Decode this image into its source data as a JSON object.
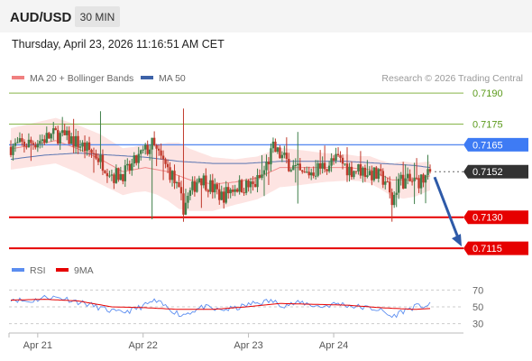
{
  "header": {
    "symbol": "AUD/USD",
    "interval": "30 MIN",
    "datetime": "Thursday, April 23, 2026 11:16:51 AM CET"
  },
  "legend": {
    "ma20_label": "MA 20 + Bollinger Bands",
    "ma50_label": "MA 50",
    "copyright": "Research © 2026 Trading Central",
    "rsi_label": "RSI",
    "rsi_ma_label": "9MA"
  },
  "colors": {
    "background": "#ffffff",
    "header_bg": "#f4f4f4",
    "ma20": "#f08080",
    "bollinger_fill": "#fde4e2",
    "ma50": "#3d62a8",
    "resistance_green": "#86b548",
    "resistance_green_text": "#5b9a1b",
    "current_level_line": "#5b8df0",
    "current_level_box": "#3e7bf4",
    "support_red": "#e60000",
    "last_price_box": "#333333",
    "candle_up": "#3f7f4a",
    "candle_down": "#c0392b",
    "forecast_arrow": "#2e5aa8",
    "rsi_line": "#5b8df0",
    "rsi_ma_line": "#e60000"
  },
  "chart_data": [
    {
      "type": "candlestick",
      "title": "AUD/USD",
      "interval": "30 MIN",
      "x_tick_labels": [
        "Apr 21",
        "Apr 22",
        "Apr 23",
        "Apr 24"
      ],
      "ylim": [
        0.71085,
        0.71957
      ],
      "last_price": 0.7152,
      "levels": [
        {
          "label": "0.7190",
          "value": 0.719,
          "kind": "resistance"
        },
        {
          "label": "0.7175",
          "value": 0.7175,
          "kind": "resistance"
        },
        {
          "label": "0.7165",
          "value": 0.7165,
          "kind": "pivot"
        },
        {
          "label": "0.7152",
          "value": 0.7152,
          "kind": "last"
        },
        {
          "label": "0.7130",
          "value": 0.713,
          "kind": "support"
        },
        {
          "label": "0.7115",
          "value": 0.7115,
          "kind": "support"
        }
      ],
      "forecast": {
        "from": 0.7152,
        "to": 0.7115,
        "direction": "down"
      },
      "overlays": [
        "MA 20 + Bollinger Bands",
        "MA 50"
      ],
      "close_path": [
        [
          0,
          0.7164
        ],
        [
          10,
          0.7166
        ],
        [
          20,
          0.717
        ],
        [
          28,
          0.7167
        ],
        [
          38,
          0.716
        ],
        [
          46,
          0.715
        ],
        [
          52,
          0.7152
        ],
        [
          58,
          0.716
        ],
        [
          63,
          0.7165
        ],
        [
          67,
          0.7158
        ],
        [
          72,
          0.715
        ],
        [
          77,
          0.7135
        ],
        [
          84,
          0.715
        ],
        [
          88,
          0.7146
        ],
        [
          94,
          0.714
        ],
        [
          100,
          0.7145
        ],
        [
          108,
          0.7145
        ],
        [
          112,
          0.715
        ],
        [
          117,
          0.7163
        ],
        [
          122,
          0.7158
        ],
        [
          130,
          0.715
        ],
        [
          140,
          0.7155
        ],
        [
          146,
          0.7158
        ],
        [
          151,
          0.7153
        ],
        [
          156,
          0.7153
        ],
        [
          161,
          0.7151
        ],
        [
          167,
          0.7148
        ],
        [
          170,
          0.7137
        ],
        [
          173,
          0.7148
        ],
        [
          178,
          0.7147
        ],
        [
          184,
          0.7148
        ],
        [
          187,
          0.7151
        ]
      ],
      "ma20_path": [
        [
          0,
          0.7163
        ],
        [
          10,
          0.7165
        ],
        [
          20,
          0.7167
        ],
        [
          30,
          0.7163
        ],
        [
          40,
          0.7158
        ],
        [
          50,
          0.7152
        ],
        [
          60,
          0.7154
        ],
        [
          70,
          0.7152
        ],
        [
          80,
          0.7148
        ],
        [
          90,
          0.7146
        ],
        [
          100,
          0.7147
        ],
        [
          110,
          0.7149
        ],
        [
          120,
          0.7154
        ],
        [
          130,
          0.7154
        ],
        [
          140,
          0.7154
        ],
        [
          150,
          0.7154
        ],
        [
          160,
          0.7153
        ],
        [
          170,
          0.7148
        ],
        [
          180,
          0.7148
        ],
        [
          187,
          0.715
        ]
      ],
      "ma50_path": [
        [
          0,
          0.7158
        ],
        [
          15,
          0.716
        ],
        [
          30,
          0.7161
        ],
        [
          45,
          0.716
        ],
        [
          60,
          0.7159
        ],
        [
          75,
          0.7157
        ],
        [
          90,
          0.7156
        ],
        [
          105,
          0.7156
        ],
        [
          120,
          0.7157
        ],
        [
          135,
          0.7157
        ],
        [
          150,
          0.7157
        ],
        [
          165,
          0.7156
        ],
        [
          180,
          0.7155
        ],
        [
          187,
          0.7154
        ]
      ],
      "band_halfwidth_path": [
        [
          0,
          0.001
        ],
        [
          20,
          0.0011
        ],
        [
          40,
          0.0012
        ],
        [
          55,
          0.0011
        ],
        [
          65,
          0.0012
        ],
        [
          75,
          0.0016
        ],
        [
          85,
          0.0014
        ],
        [
          100,
          0.0011
        ],
        [
          115,
          0.001
        ],
        [
          125,
          0.0009
        ],
        [
          140,
          0.0007
        ],
        [
          155,
          0.0006
        ],
        [
          165,
          0.0007
        ],
        [
          175,
          0.0009
        ],
        [
          187,
          0.0007
        ]
      ]
    },
    {
      "type": "line",
      "title": "RSI",
      "series": [
        {
          "name": "RSI"
        },
        {
          "name": "9MA"
        }
      ],
      "ylim": [
        20,
        80
      ],
      "y_ticks": [
        70,
        50,
        30
      ],
      "rsi_path": [
        [
          0,
          60
        ],
        [
          8,
          56
        ],
        [
          16,
          62
        ],
        [
          24,
          60
        ],
        [
          30,
          56
        ],
        [
          36,
          52
        ],
        [
          42,
          47
        ],
        [
          48,
          43
        ],
        [
          54,
          46
        ],
        [
          60,
          52
        ],
        [
          64,
          57
        ],
        [
          68,
          52
        ],
        [
          72,
          46
        ],
        [
          76,
          40
        ],
        [
          80,
          44
        ],
        [
          86,
          50
        ],
        [
          92,
          46
        ],
        [
          100,
          48
        ],
        [
          108,
          54
        ],
        [
          116,
          57
        ],
        [
          122,
          52
        ],
        [
          130,
          55
        ],
        [
          138,
          50
        ],
        [
          146,
          54
        ],
        [
          152,
          51
        ],
        [
          158,
          49
        ],
        [
          164,
          47
        ],
        [
          170,
          38
        ],
        [
          174,
          44
        ],
        [
          180,
          50
        ],
        [
          187,
          52
        ]
      ],
      "ma_path": [
        [
          0,
          58
        ],
        [
          15,
          59
        ],
        [
          30,
          57
        ],
        [
          45,
          50
        ],
        [
          60,
          49
        ],
        [
          75,
          47
        ],
        [
          90,
          47
        ],
        [
          105,
          50
        ],
        [
          120,
          54
        ],
        [
          135,
          53
        ],
        [
          150,
          52
        ],
        [
          165,
          49
        ],
        [
          180,
          47
        ],
        [
          187,
          48
        ]
      ]
    }
  ]
}
